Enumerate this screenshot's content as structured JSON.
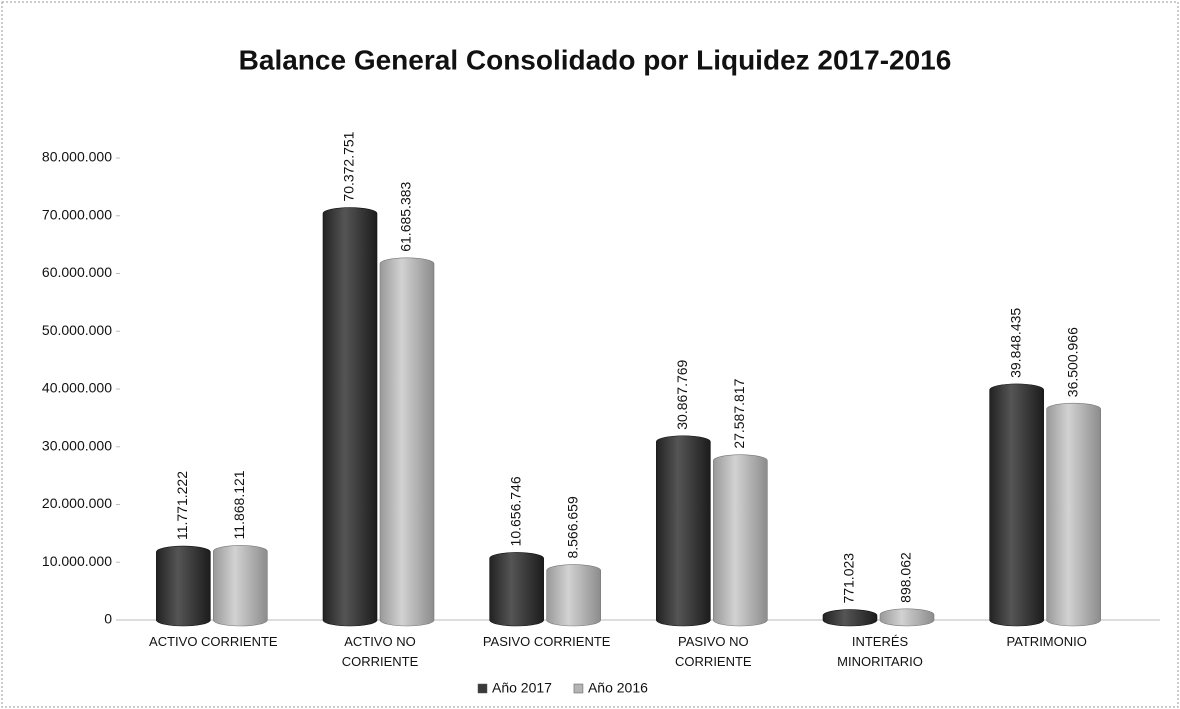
{
  "chart_data": {
    "type": "bar",
    "title": "Balance General Consolidado  por Liquidez 2017-2016",
    "categories": [
      "ACTIVO CORRIENTE",
      "ACTIVO NO CORRIENTE",
      "PASIVO CORRIENTE",
      "PASIVO NO CORRIENTE",
      "INTERÉS MINORITARIO",
      "PATRIMONIO"
    ],
    "series": [
      {
        "name": "Año 2017",
        "color": "#3a3a3a",
        "values": [
          11771222,
          70372751,
          10656746,
          30867769,
          771023,
          39848435
        ],
        "value_labels": [
          "11.771.222",
          "70.372.751",
          "10.656.746",
          "30.867.769",
          "771.023",
          "39.848.435"
        ]
      },
      {
        "name": "Año 2016",
        "color": "#b4b4b4",
        "values": [
          11868121,
          61685383,
          8566659,
          27587817,
          898062,
          36500966
        ],
        "value_labels": [
          "11.868.121",
          "61.685.383",
          "8.566.659",
          "27.587.817",
          "898.062",
          "36.500.966"
        ]
      }
    ],
    "ylim": [
      0,
      80000000
    ],
    "yticks": [
      0,
      {
        "value": 10000000,
        "label": "10.000.000"
      },
      {
        "value": 20000000,
        "label": "20.000.000"
      },
      {
        "value": 30000000,
        "label": "30.000.000"
      },
      {
        "value": 40000000,
        "label": "40.000.000"
      },
      {
        "value": 50000000,
        "label": "50.000.000"
      },
      {
        "value": 60000000,
        "label": "60.000.000"
      },
      {
        "value": 70000000,
        "label": "70.000.000"
      },
      {
        "value": 80000000,
        "label": "80.000.000"
      }
    ]
  }
}
